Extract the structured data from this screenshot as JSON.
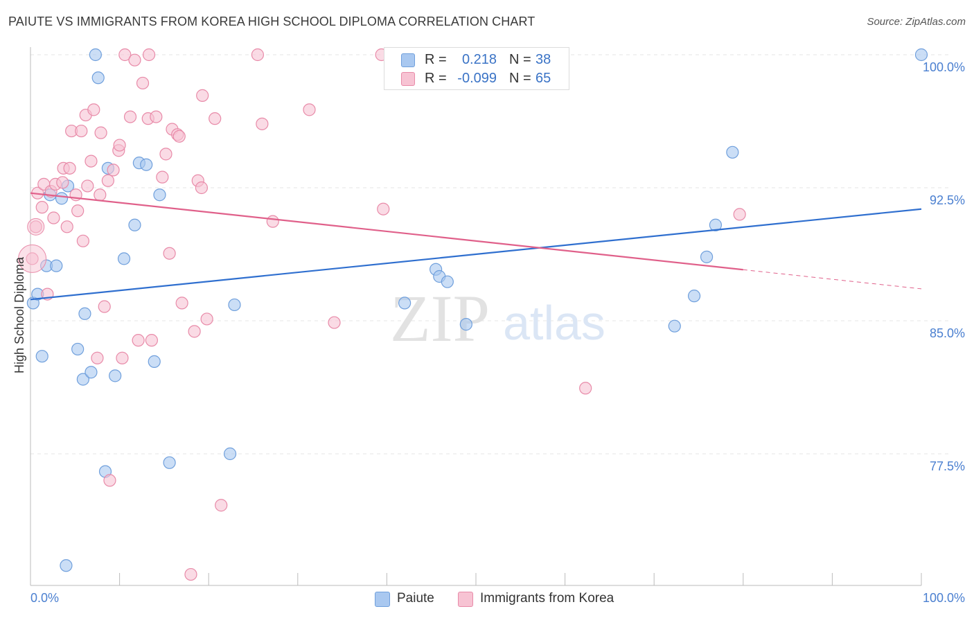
{
  "header": {
    "title": "PAIUTE VS IMMIGRANTS FROM KOREA HIGH SCHOOL DIPLOMA CORRELATION CHART",
    "source": "Source: ZipAtlas.com"
  },
  "watermark": {
    "zip": "ZIP",
    "atlas": "atlas"
  },
  "stats": [
    {
      "r_label": "R =",
      "r_value": "0.218",
      "n_label": "N =",
      "n_value": "38",
      "color": "#a9c8f0",
      "border": "#6f9fdc"
    },
    {
      "r_label": "R =",
      "r_value": "-0.099",
      "n_label": "N =",
      "n_value": "65",
      "color": "#f7c3d3",
      "border": "#e88aa8"
    }
  ],
  "legend": [
    {
      "label": "Paiute",
      "color": "#a9c8f0",
      "border": "#6f9fdc"
    },
    {
      "label": "Immigrants from Korea",
      "color": "#f7c3d3",
      "border": "#e88aa8"
    }
  ],
  "chart_data": {
    "type": "scatter",
    "title": "PAIUTE VS IMMIGRANTS FROM KOREA HIGH SCHOOL DIPLOMA CORRELATION CHART",
    "xlabel": "",
    "ylabel": "High School Diploma",
    "xlim": [
      0,
      100
    ],
    "ylim": [
      70.5,
      101.5
    ],
    "x_tick_labels": [
      "0.0%",
      "100.0%"
    ],
    "y_ticks": [
      77.5,
      85.0,
      92.5,
      100.0
    ],
    "y_tick_labels": [
      "77.5%",
      "85.0%",
      "92.5%",
      "100.0%"
    ],
    "grid": true,
    "series": [
      {
        "name": "Paiute",
        "color": "#6f9fdc",
        "fill": "#a9c8f0",
        "line_color": "#2f6fcf",
        "trend": {
          "x0": 0,
          "y0": 86.2,
          "x1": 100,
          "y1": 91.3,
          "dash_from": null
        },
        "points": [
          [
            0.3,
            86.0
          ],
          [
            0.8,
            86.5
          ],
          [
            1.3,
            83.0
          ],
          [
            1.8,
            88.1
          ],
          [
            2.2,
            92.1
          ],
          [
            2.9,
            88.1
          ],
          [
            3.5,
            91.9
          ],
          [
            4.0,
            71.2
          ],
          [
            4.2,
            92.6
          ],
          [
            5.3,
            83.4
          ],
          [
            5.9,
            81.7
          ],
          [
            6.1,
            85.4
          ],
          [
            6.8,
            82.1
          ],
          [
            7.3,
            100.0
          ],
          [
            7.6,
            98.7
          ],
          [
            8.4,
            76.5
          ],
          [
            8.7,
            93.6
          ],
          [
            9.5,
            81.9
          ],
          [
            10.5,
            88.5
          ],
          [
            11.7,
            90.4
          ],
          [
            12.2,
            93.9
          ],
          [
            13.0,
            93.8
          ],
          [
            13.9,
            82.7
          ],
          [
            14.5,
            92.1
          ],
          [
            15.6,
            77.0
          ],
          [
            22.4,
            77.5
          ],
          [
            22.9,
            85.9
          ],
          [
            42.0,
            86.0
          ],
          [
            45.5,
            87.9
          ],
          [
            45.9,
            87.5
          ],
          [
            46.8,
            87.2
          ],
          [
            48.9,
            84.8
          ],
          [
            72.3,
            84.7
          ],
          [
            74.5,
            86.4
          ],
          [
            75.9,
            88.6
          ],
          [
            76.9,
            90.4
          ],
          [
            78.8,
            94.5
          ],
          [
            100.0,
            100.0
          ]
        ]
      },
      {
        "name": "Immigrants from Korea",
        "color": "#e88aa8",
        "fill": "#f7c3d3",
        "line_color": "#e0608a",
        "trend": {
          "x0": 0,
          "y0": 92.2,
          "x1": 100,
          "y1": 86.8,
          "dash_from": 80
        },
        "points": [
          [
            0.2,
            88.5
          ],
          [
            0.6,
            90.3
          ],
          [
            0.8,
            92.2
          ],
          [
            1.3,
            91.4
          ],
          [
            1.5,
            92.7
          ],
          [
            1.9,
            86.5
          ],
          [
            2.3,
            92.3
          ],
          [
            2.6,
            90.8
          ],
          [
            2.8,
            92.7
          ],
          [
            3.6,
            92.8
          ],
          [
            3.7,
            93.6
          ],
          [
            4.1,
            90.3
          ],
          [
            4.4,
            93.6
          ],
          [
            4.6,
            95.7
          ],
          [
            5.1,
            92.1
          ],
          [
            5.3,
            91.2
          ],
          [
            5.7,
            95.7
          ],
          [
            5.9,
            89.5
          ],
          [
            6.2,
            96.6
          ],
          [
            6.4,
            92.6
          ],
          [
            6.8,
            94.0
          ],
          [
            7.1,
            96.9
          ],
          [
            7.5,
            82.9
          ],
          [
            7.8,
            92.1
          ],
          [
            7.9,
            95.6
          ],
          [
            8.3,
            85.8
          ],
          [
            8.7,
            92.9
          ],
          [
            8.9,
            76.0
          ],
          [
            9.3,
            93.5
          ],
          [
            9.9,
            94.6
          ],
          [
            10.0,
            94.9
          ],
          [
            10.3,
            82.9
          ],
          [
            10.6,
            100.0
          ],
          [
            11.2,
            96.5
          ],
          [
            11.7,
            99.7
          ],
          [
            12.1,
            83.9
          ],
          [
            12.6,
            98.4
          ],
          [
            13.2,
            96.4
          ],
          [
            13.3,
            100.0
          ],
          [
            13.6,
            83.9
          ],
          [
            14.1,
            96.5
          ],
          [
            14.8,
            93.1
          ],
          [
            15.2,
            94.4
          ],
          [
            15.6,
            88.8
          ],
          [
            15.9,
            95.8
          ],
          [
            16.5,
            95.5
          ],
          [
            16.7,
            95.4
          ],
          [
            17.0,
            86.0
          ],
          [
            18.0,
            70.7
          ],
          [
            18.4,
            84.4
          ],
          [
            18.8,
            92.9
          ],
          [
            19.2,
            92.5
          ],
          [
            19.3,
            97.7
          ],
          [
            19.8,
            85.1
          ],
          [
            20.7,
            96.4
          ],
          [
            21.4,
            74.6
          ],
          [
            25.5,
            100.0
          ],
          [
            26.0,
            96.1
          ],
          [
            27.2,
            90.6
          ],
          [
            31.3,
            96.9
          ],
          [
            34.1,
            84.9
          ],
          [
            39.4,
            100.0
          ],
          [
            39.6,
            91.3
          ],
          [
            62.3,
            81.2
          ],
          [
            79.6,
            91.0
          ]
        ]
      }
    ]
  }
}
